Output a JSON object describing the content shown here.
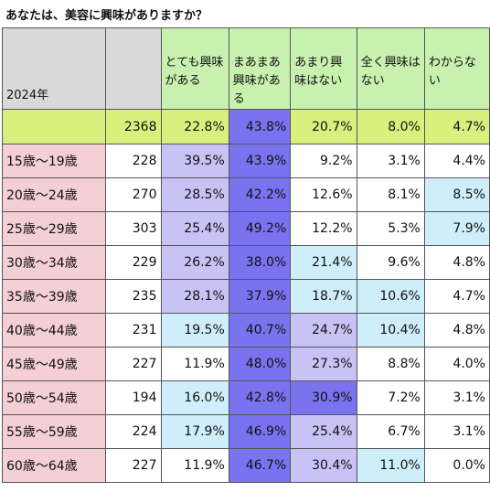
{
  "title": "あなたは、美容に興味がありますか？",
  "header": {
    "year_label": "2024年",
    "count_label": "",
    "columns": [
      "とても興味がある",
      "まあまあ興味がある",
      "あまり興味はない",
      "全く興味はない",
      "わからない"
    ]
  },
  "colors": {
    "gray": "#d9d9d9",
    "yellow_green": "#d9f07f",
    "pink": "#f4cfd3",
    "white": "#ffffff",
    "light_blue": "#cfeefb",
    "lavender": "#c9c2f5",
    "blue_violet": "#7a73f0",
    "light_green": "#c8f0ae"
  },
  "total": {
    "label": "",
    "count": "2368",
    "values": [
      "22.8%",
      "43.8%",
      "20.7%",
      "8.0%",
      "4.7%"
    ]
  },
  "rows": [
    {
      "label": "15歳～19歳",
      "count": "228",
      "values": [
        "39.5%",
        "43.9%",
        "9.2%",
        "3.1%",
        "4.4%"
      ]
    },
    {
      "label": "20歳～24歳",
      "count": "270",
      "values": [
        "28.5%",
        "42.2%",
        "12.6%",
        "8.1%",
        "8.5%"
      ]
    },
    {
      "label": "25歳～29歳",
      "count": "303",
      "values": [
        "25.4%",
        "49.2%",
        "12.2%",
        "5.3%",
        "7.9%"
      ]
    },
    {
      "label": "30歳～34歳",
      "count": "229",
      "values": [
        "26.2%",
        "38.0%",
        "21.4%",
        "9.6%",
        "4.8%"
      ]
    },
    {
      "label": "35歳～39歳",
      "count": "235",
      "values": [
        "28.1%",
        "37.9%",
        "18.7%",
        "10.6%",
        "4.7%"
      ]
    },
    {
      "label": "40歳～44歳",
      "count": "231",
      "values": [
        "19.5%",
        "40.7%",
        "24.7%",
        "10.4%",
        "4.8%"
      ]
    },
    {
      "label": "45歳～49歳",
      "count": "227",
      "values": [
        "11.9%",
        "48.0%",
        "27.3%",
        "8.8%",
        "4.0%"
      ]
    },
    {
      "label": "50歳～54歳",
      "count": "194",
      "values": [
        "16.0%",
        "42.8%",
        "30.9%",
        "7.2%",
        "3.1%"
      ]
    },
    {
      "label": "55歳～59歳",
      "count": "224",
      "values": [
        "17.9%",
        "46.9%",
        "25.4%",
        "6.7%",
        "3.1%"
      ]
    },
    {
      "label": "60歳～64歳",
      "count": "227",
      "values": [
        "11.9%",
        "46.7%",
        "30.4%",
        "11.0%",
        "0.0%"
      ]
    }
  ]
}
